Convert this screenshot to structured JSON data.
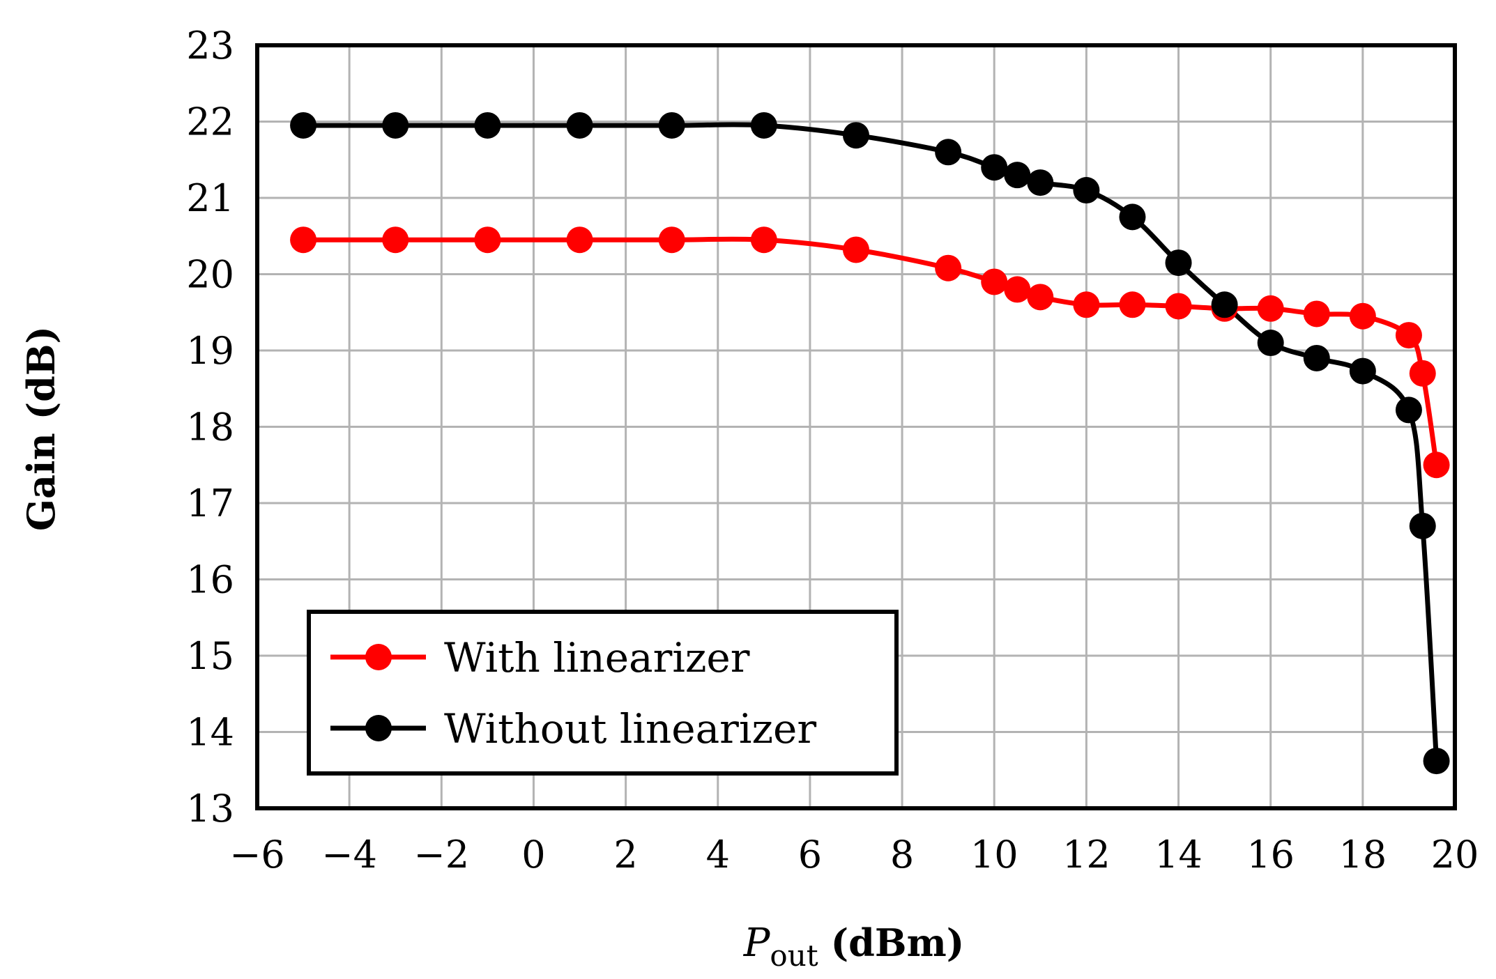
{
  "colors": {
    "with": "#ff0000",
    "without": "#000000",
    "grid": "#b3b3b3"
  },
  "chart_data": {
    "type": "line",
    "xlabel_main": "P",
    "xlabel_sub": "out",
    "xlabel_unit": "(dBm)",
    "ylabel": "Gain (dB)",
    "xlim": [
      -6,
      20
    ],
    "ylim": [
      13,
      23
    ],
    "xticks": [
      -6,
      -4,
      -2,
      0,
      2,
      4,
      6,
      8,
      10,
      12,
      14,
      16,
      18,
      20
    ],
    "xtick_labels": [
      "−6",
      "−4",
      "−2",
      "0",
      "2",
      "4",
      "6",
      "8",
      "10",
      "12",
      "14",
      "16",
      "18",
      "20"
    ],
    "yticks": [
      13,
      14,
      15,
      16,
      17,
      18,
      19,
      20,
      21,
      22,
      23
    ],
    "ytick_labels": [
      "13",
      "14",
      "15",
      "16",
      "17",
      "18",
      "19",
      "20",
      "21",
      "22",
      "23"
    ],
    "legend_position": "bottom-left",
    "series": [
      {
        "name": "With linearizer",
        "color": "#ff0000",
        "x": [
          -5,
          -3,
          -1,
          1,
          3,
          5,
          7,
          9,
          10,
          10.5,
          11,
          12,
          13,
          14,
          15,
          16,
          17,
          18,
          19,
          19.3,
          19.6
        ],
        "y": [
          20.45,
          20.45,
          20.45,
          20.45,
          20.45,
          20.45,
          20.32,
          20.08,
          19.9,
          19.8,
          19.7,
          19.6,
          19.6,
          19.58,
          19.55,
          19.55,
          19.48,
          19.45,
          19.2,
          18.7,
          17.5
        ]
      },
      {
        "name": "Without linearizer",
        "color": "#000000",
        "x": [
          -5,
          -3,
          -1,
          1,
          3,
          5,
          7,
          9,
          10,
          10.5,
          11,
          12,
          13,
          14,
          15,
          16,
          17,
          18,
          19,
          19.3,
          19.6
        ],
        "y": [
          21.95,
          21.95,
          21.95,
          21.95,
          21.95,
          21.95,
          21.82,
          21.6,
          21.4,
          21.3,
          21.2,
          21.1,
          20.75,
          20.15,
          19.6,
          19.1,
          18.9,
          18.73,
          18.22,
          16.7,
          13.62
        ]
      }
    ]
  }
}
